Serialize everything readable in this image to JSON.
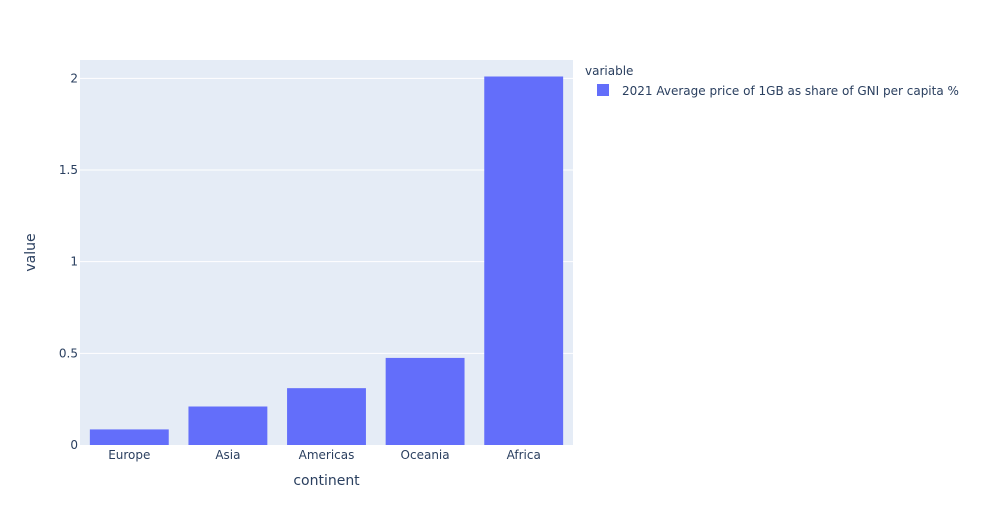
{
  "chart_data": {
    "type": "bar",
    "categories": [
      "Europe",
      "Asia",
      "Americas",
      "Oceania",
      "Africa"
    ],
    "series": [
      {
        "name": "2021 Average price of 1GB as share of GNI per capita %",
        "values": [
          0.085,
          0.21,
          0.31,
          0.475,
          2.01
        ],
        "color": "#636efa"
      }
    ],
    "xlabel": "continent",
    "ylabel": "value",
    "ylim": [
      0,
      2.1
    ],
    "yticks": [
      0,
      0.5,
      1,
      1.5,
      2
    ],
    "ytick_labels": [
      "0",
      "0.5",
      "1",
      "1.5",
      "2"
    ],
    "legend_title": "variable",
    "legend_position": "top-right",
    "grid": true,
    "plot_bg": "#e5ecf6",
    "grid_color": "#ffffff"
  }
}
